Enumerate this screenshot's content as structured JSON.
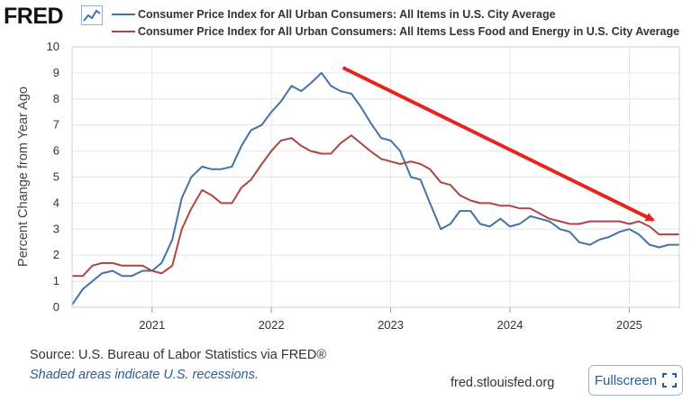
{
  "header": {
    "logo_text": "FRED",
    "logo_icon": "trend-chart-icon"
  },
  "footer": {
    "source": "Source: U.S. Bureau of Labor Statistics via FRED®",
    "note": "Shaded areas indicate U.S. recessions.",
    "site": "fred.stlouisfed.org",
    "fullscreen_label": "Fullscreen",
    "fullscreen_icon": "expand-icon"
  },
  "colors": {
    "series_all_items": "#4572a7",
    "series_core": "#aa4643",
    "arrow": "#e8231e",
    "grid": "#e6e6e6",
    "plot_border": "#cfcfcf",
    "link": "#2a5d98"
  },
  "chart_data": {
    "type": "line",
    "title": "",
    "xlabel": "",
    "ylabel": "Percent Change from Year Ago",
    "ylim": [
      0,
      10
    ],
    "xlim": [
      2020.33,
      2025.42
    ],
    "yticks": [
      0,
      1,
      2,
      3,
      4,
      5,
      6,
      7,
      8,
      9,
      10
    ],
    "xticks": [
      2021,
      2022,
      2023,
      2024,
      2025
    ],
    "xtick_labels": [
      "2021",
      "2022",
      "2023",
      "2024",
      "2025"
    ],
    "grid": true,
    "legend": "top",
    "annotation": {
      "type": "arrow",
      "from": [
        2022.6,
        9.2
      ],
      "to": [
        2025.2,
        3.35
      ]
    },
    "series": [
      {
        "name": "Consumer Price Index for All Urban Consumers: All Items in U.S. City Average",
        "x": [
          2020.33,
          2020.42,
          2020.5,
          2020.58,
          2020.67,
          2020.75,
          2020.83,
          2020.92,
          2021.0,
          2021.08,
          2021.17,
          2021.25,
          2021.33,
          2021.42,
          2021.5,
          2021.58,
          2021.67,
          2021.75,
          2021.83,
          2021.92,
          2022.0,
          2022.08,
          2022.17,
          2022.25,
          2022.33,
          2022.42,
          2022.5,
          2022.58,
          2022.67,
          2022.75,
          2022.83,
          2022.92,
          2023.0,
          2023.08,
          2023.17,
          2023.25,
          2023.33,
          2023.42,
          2023.5,
          2023.58,
          2023.67,
          2023.75,
          2023.83,
          2023.92,
          2024.0,
          2024.08,
          2024.17,
          2024.25,
          2024.33,
          2024.42,
          2024.5,
          2024.58,
          2024.67,
          2024.75,
          2024.83,
          2024.92,
          2025.0,
          2025.08,
          2025.17,
          2025.25,
          2025.33,
          2025.42
        ],
        "values": [
          0.1,
          0.7,
          1.0,
          1.3,
          1.4,
          1.2,
          1.2,
          1.4,
          1.4,
          1.7,
          2.6,
          4.2,
          5.0,
          5.4,
          5.3,
          5.3,
          5.4,
          6.2,
          6.8,
          7.0,
          7.5,
          7.9,
          8.5,
          8.3,
          8.6,
          9.0,
          8.5,
          8.3,
          8.2,
          7.7,
          7.1,
          6.5,
          6.4,
          6.0,
          5.0,
          4.9,
          4.0,
          3.0,
          3.2,
          3.7,
          3.7,
          3.2,
          3.1,
          3.4,
          3.1,
          3.2,
          3.5,
          3.4,
          3.3,
          3.0,
          2.9,
          2.5,
          2.4,
          2.6,
          2.7,
          2.9,
          3.0,
          2.8,
          2.4,
          2.3,
          2.4,
          2.4
        ]
      },
      {
        "name": "Consumer Price Index for All Urban Consumers: All Items Less Food and Energy in U.S. City Average",
        "x": [
          2020.33,
          2020.42,
          2020.5,
          2020.58,
          2020.67,
          2020.75,
          2020.83,
          2020.92,
          2021.0,
          2021.08,
          2021.17,
          2021.25,
          2021.33,
          2021.42,
          2021.5,
          2021.58,
          2021.67,
          2021.75,
          2021.83,
          2021.92,
          2022.0,
          2022.08,
          2022.17,
          2022.25,
          2022.33,
          2022.42,
          2022.5,
          2022.58,
          2022.67,
          2022.75,
          2022.83,
          2022.92,
          2023.0,
          2023.08,
          2023.17,
          2023.25,
          2023.33,
          2023.42,
          2023.5,
          2023.58,
          2023.67,
          2023.75,
          2023.83,
          2023.92,
          2024.0,
          2024.08,
          2024.17,
          2024.25,
          2024.33,
          2024.42,
          2024.5,
          2024.58,
          2024.67,
          2024.75,
          2024.83,
          2024.92,
          2025.0,
          2025.08,
          2025.17,
          2025.25,
          2025.33,
          2025.42
        ],
        "values": [
          1.2,
          1.2,
          1.6,
          1.7,
          1.7,
          1.6,
          1.6,
          1.6,
          1.4,
          1.3,
          1.6,
          3.0,
          3.8,
          4.5,
          4.3,
          4.0,
          4.0,
          4.6,
          4.9,
          5.5,
          6.0,
          6.4,
          6.5,
          6.2,
          6.0,
          5.9,
          5.9,
          6.3,
          6.6,
          6.3,
          6.0,
          5.7,
          5.6,
          5.5,
          5.6,
          5.5,
          5.3,
          4.8,
          4.7,
          4.3,
          4.1,
          4.0,
          4.0,
          3.9,
          3.9,
          3.8,
          3.8,
          3.6,
          3.4,
          3.3,
          3.2,
          3.2,
          3.3,
          3.3,
          3.3,
          3.3,
          3.2,
          3.3,
          3.1,
          2.8,
          2.8,
          2.8
        ]
      }
    ]
  }
}
